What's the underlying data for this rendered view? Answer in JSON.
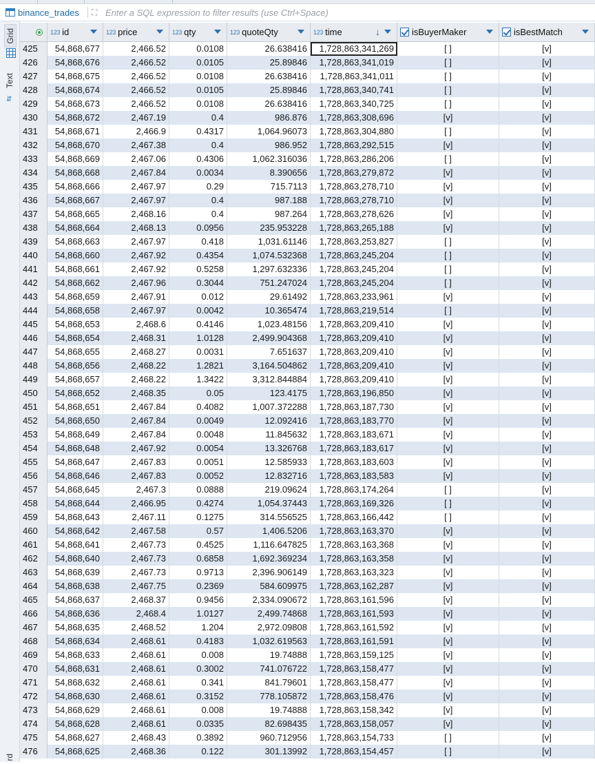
{
  "table_name": "binance_trades",
  "filter": {
    "placeholder": "Enter a SQL expression to filter results (use Ctrl+Space)"
  },
  "side_tabs": {
    "grid": "Grid",
    "text": "Text",
    "bottom": "rd"
  },
  "columns": [
    {
      "type_badge": "123",
      "label": "id"
    },
    {
      "type_badge": "123",
      "label": "price"
    },
    {
      "type_badge": "123",
      "label": "qty"
    },
    {
      "type_badge": "123",
      "label": "quoteQty"
    },
    {
      "type_badge": "123",
      "label": "time",
      "sorted": "desc"
    },
    {
      "type_badge": "",
      "label": "isBuyerMaker",
      "checkbox": true
    },
    {
      "type_badge": "",
      "label": "isBestMatch",
      "checkbox": true
    }
  ],
  "selected_row": 425,
  "rows": [
    [
      "425",
      "54,868,677",
      "2,466.52",
      "0.0108",
      "26.638416",
      "1,728,863,341,269",
      "[ ]",
      "[v]"
    ],
    [
      "426",
      "54,868,676",
      "2,466.52",
      "0.0105",
      "25.89846",
      "1,728,863,341,019",
      "[ ]",
      "[v]"
    ],
    [
      "427",
      "54,868,675",
      "2,466.52",
      "0.0108",
      "26.638416",
      "1,728,863,341,011",
      "[ ]",
      "[v]"
    ],
    [
      "428",
      "54,868,674",
      "2,466.52",
      "0.0105",
      "25.89846",
      "1,728,863,340,741",
      "[ ]",
      "[v]"
    ],
    [
      "429",
      "54,868,673",
      "2,466.52",
      "0.0108",
      "26.638416",
      "1,728,863,340,725",
      "[ ]",
      "[v]"
    ],
    [
      "430",
      "54,868,672",
      "2,467.19",
      "0.4",
      "986.876",
      "1,728,863,308,696",
      "[v]",
      "[v]"
    ],
    [
      "431",
      "54,868,671",
      "2,466.9",
      "0.4317",
      "1,064.96073",
      "1,728,863,304,880",
      "[ ]",
      "[v]"
    ],
    [
      "432",
      "54,868,670",
      "2,467.38",
      "0.4",
      "986.952",
      "1,728,863,292,515",
      "[v]",
      "[v]"
    ],
    [
      "433",
      "54,868,669",
      "2,467.06",
      "0.4306",
      "1,062.316036",
      "1,728,863,286,206",
      "[ ]",
      "[v]"
    ],
    [
      "434",
      "54,868,668",
      "2,467.84",
      "0.0034",
      "8.390656",
      "1,728,863,279,872",
      "[v]",
      "[v]"
    ],
    [
      "435",
      "54,868,666",
      "2,467.97",
      "0.29",
      "715.7113",
      "1,728,863,278,710",
      "[v]",
      "[v]"
    ],
    [
      "436",
      "54,868,667",
      "2,467.97",
      "0.4",
      "987.188",
      "1,728,863,278,710",
      "[v]",
      "[v]"
    ],
    [
      "437",
      "54,868,665",
      "2,468.16",
      "0.4",
      "987.264",
      "1,728,863,278,626",
      "[v]",
      "[v]"
    ],
    [
      "438",
      "54,868,664",
      "2,468.13",
      "0.0956",
      "235.953228",
      "1,728,863,265,188",
      "[v]",
      "[v]"
    ],
    [
      "439",
      "54,868,663",
      "2,467.97",
      "0.418",
      "1,031.61146",
      "1,728,863,253,827",
      "[ ]",
      "[v]"
    ],
    [
      "440",
      "54,868,660",
      "2,467.92",
      "0.4354",
      "1,074.532368",
      "1,728,863,245,204",
      "[ ]",
      "[v]"
    ],
    [
      "441",
      "54,868,661",
      "2,467.92",
      "0.5258",
      "1,297.632336",
      "1,728,863,245,204",
      "[ ]",
      "[v]"
    ],
    [
      "442",
      "54,868,662",
      "2,467.96",
      "0.3044",
      "751.247024",
      "1,728,863,245,204",
      "[ ]",
      "[v]"
    ],
    [
      "443",
      "54,868,659",
      "2,467.91",
      "0.012",
      "29.61492",
      "1,728,863,233,961",
      "[v]",
      "[v]"
    ],
    [
      "444",
      "54,868,658",
      "2,467.97",
      "0.0042",
      "10.365474",
      "1,728,863,219,514",
      "[ ]",
      "[v]"
    ],
    [
      "445",
      "54,868,653",
      "2,468.6",
      "0.4146",
      "1,023.48156",
      "1,728,863,209,410",
      "[v]",
      "[v]"
    ],
    [
      "446",
      "54,868,654",
      "2,468.31",
      "1.0128",
      "2,499.904368",
      "1,728,863,209,410",
      "[v]",
      "[v]"
    ],
    [
      "447",
      "54,868,655",
      "2,468.27",
      "0.0031",
      "7.651637",
      "1,728,863,209,410",
      "[v]",
      "[v]"
    ],
    [
      "448",
      "54,868,656",
      "2,468.22",
      "1.2821",
      "3,164.504862",
      "1,728,863,209,410",
      "[v]",
      "[v]"
    ],
    [
      "449",
      "54,868,657",
      "2,468.22",
      "1.3422",
      "3,312.844884",
      "1,728,863,209,410",
      "[v]",
      "[v]"
    ],
    [
      "450",
      "54,868,652",
      "2,468.35",
      "0.05",
      "123.4175",
      "1,728,863,196,850",
      "[v]",
      "[v]"
    ],
    [
      "451",
      "54,868,651",
      "2,467.84",
      "0.4082",
      "1,007.372288",
      "1,728,863,187,730",
      "[v]",
      "[v]"
    ],
    [
      "452",
      "54,868,650",
      "2,467.84",
      "0.0049",
      "12.092416",
      "1,728,863,183,770",
      "[v]",
      "[v]"
    ],
    [
      "453",
      "54,868,649",
      "2,467.84",
      "0.0048",
      "11.845632",
      "1,728,863,183,671",
      "[v]",
      "[v]"
    ],
    [
      "454",
      "54,868,648",
      "2,467.92",
      "0.0054",
      "13.326768",
      "1,728,863,183,617",
      "[v]",
      "[v]"
    ],
    [
      "455",
      "54,868,647",
      "2,467.83",
      "0.0051",
      "12.585933",
      "1,728,863,183,603",
      "[v]",
      "[v]"
    ],
    [
      "456",
      "54,868,646",
      "2,467.83",
      "0.0052",
      "12.832716",
      "1,728,863,183,583",
      "[v]",
      "[v]"
    ],
    [
      "457",
      "54,868,645",
      "2,467.3",
      "0.0888",
      "219.09624",
      "1,728,863,174,264",
      "[ ]",
      "[v]"
    ],
    [
      "458",
      "54,868,644",
      "2,466.95",
      "0.4274",
      "1,054.37443",
      "1,728,863,169,326",
      "[ ]",
      "[v]"
    ],
    [
      "459",
      "54,868,643",
      "2,467.11",
      "0.1275",
      "314.556525",
      "1,728,863,166,442",
      "[ ]",
      "[v]"
    ],
    [
      "460",
      "54,868,642",
      "2,467.58",
      "0.57",
      "1,406.5206",
      "1,728,863,163,370",
      "[v]",
      "[v]"
    ],
    [
      "461",
      "54,868,641",
      "2,467.73",
      "0.4525",
      "1,116.647825",
      "1,728,863,163,368",
      "[v]",
      "[v]"
    ],
    [
      "462",
      "54,868,640",
      "2,467.73",
      "0.6858",
      "1,692.369234",
      "1,728,863,163,358",
      "[v]",
      "[v]"
    ],
    [
      "463",
      "54,868,639",
      "2,467.73",
      "0.9713",
      "2,396.906149",
      "1,728,863,163,323",
      "[v]",
      "[v]"
    ],
    [
      "464",
      "54,868,638",
      "2,467.75",
      "0.2369",
      "584.609975",
      "1,728,863,162,287",
      "[v]",
      "[v]"
    ],
    [
      "465",
      "54,868,637",
      "2,468.37",
      "0.9456",
      "2,334.090672",
      "1,728,863,161,596",
      "[v]",
      "[v]"
    ],
    [
      "466",
      "54,868,636",
      "2,468.4",
      "1.0127",
      "2,499.74868",
      "1,728,863,161,593",
      "[v]",
      "[v]"
    ],
    [
      "467",
      "54,868,635",
      "2,468.52",
      "1.204",
      "2,972.09808",
      "1,728,863,161,592",
      "[v]",
      "[v]"
    ],
    [
      "468",
      "54,868,634",
      "2,468.61",
      "0.4183",
      "1,032.619563",
      "1,728,863,161,591",
      "[v]",
      "[v]"
    ],
    [
      "469",
      "54,868,633",
      "2,468.61",
      "0.008",
      "19.74888",
      "1,728,863,159,125",
      "[v]",
      "[v]"
    ],
    [
      "470",
      "54,868,631",
      "2,468.61",
      "0.3002",
      "741.076722",
      "1,728,863,158,477",
      "[v]",
      "[v]"
    ],
    [
      "471",
      "54,868,632",
      "2,468.61",
      "0.341",
      "841.79601",
      "1,728,863,158,477",
      "[v]",
      "[v]"
    ],
    [
      "472",
      "54,868,630",
      "2,468.61",
      "0.3152",
      "778.105872",
      "1,728,863,158,476",
      "[v]",
      "[v]"
    ],
    [
      "473",
      "54,868,629",
      "2,468.61",
      "0.008",
      "19.74888",
      "1,728,863,158,342",
      "[v]",
      "[v]"
    ],
    [
      "474",
      "54,868,628",
      "2,468.61",
      "0.0335",
      "82.698435",
      "1,728,863,158,057",
      "[v]",
      "[v]"
    ],
    [
      "475",
      "54,868,627",
      "2,468.43",
      "0.3892",
      "960.712956",
      "1,728,863,154,733",
      "[ ]",
      "[v]"
    ],
    [
      "476",
      "54,868,625",
      "2,468.36",
      "0.122",
      "301.13992",
      "1,728,863,154,457",
      "[ ]",
      "[v]"
    ]
  ]
}
